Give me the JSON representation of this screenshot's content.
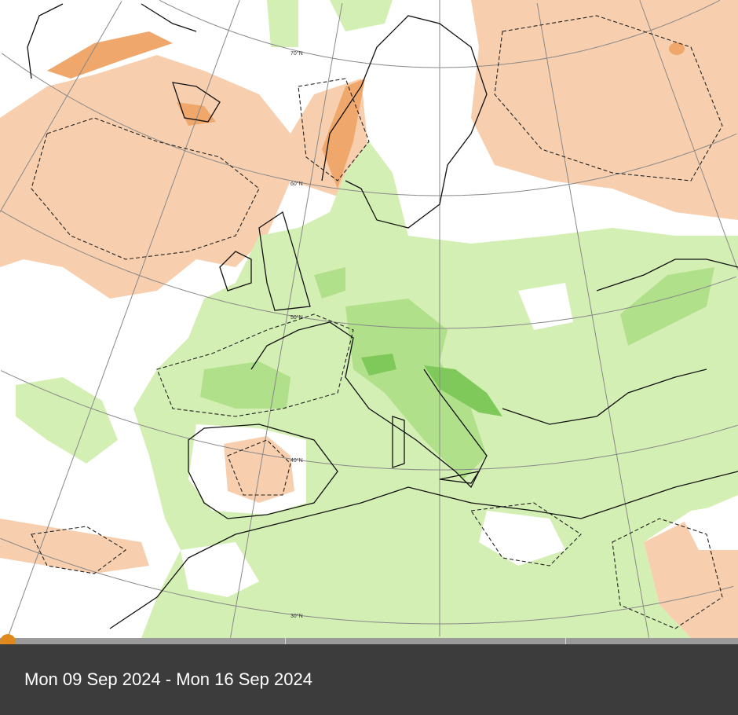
{
  "map": {
    "latitude_labels": [
      "70°N",
      "60°N",
      "50°N",
      "40°N",
      "30°N"
    ],
    "colors": {
      "warm_light": "#f8cfae",
      "warm_strong": "#f0a76c",
      "wet_light": "#d4efb4",
      "wet_mid": "#b0e08a",
      "wet_strong": "#7fc95a"
    }
  },
  "timeline": {
    "period_label": "Mon 09 Sep 2024 - Mon 16 Sep 2024",
    "position_fraction": 0.0,
    "accent_color": "#e08a1e"
  }
}
